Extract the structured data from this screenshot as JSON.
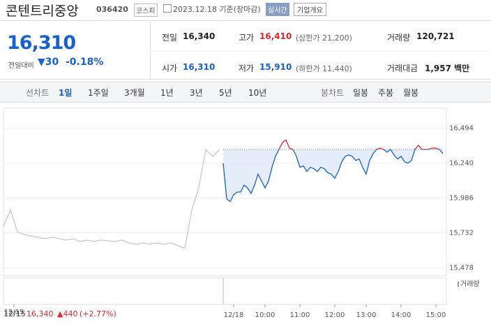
{
  "header": {
    "name": "콘텐트리중앙",
    "code": "036420",
    "market": "코스피",
    "date": "2023.12.18 기준(장마감)",
    "realtime": "실시간",
    "company_info": "기업개요"
  },
  "quote": {
    "price": "16,310",
    "change_label": "전일대비",
    "change": "▼30",
    "change_pct": "-0.18%"
  },
  "stats": [
    {
      "label": "전일",
      "value": "16,340"
    },
    {
      "label": "고가",
      "value": "16,410",
      "note": "(상한가 21,200)",
      "color": "#e0262f"
    },
    {
      "label": "거래량",
      "value": "120,721"
    },
    {
      "label": "시가",
      "value": "16,310",
      "color": "#1761c9"
    },
    {
      "label": "저가",
      "value": "15,910",
      "note": "(하한가 11,440)",
      "color": "#1761c9"
    },
    {
      "label": "거래대금",
      "value": "1,957 백만"
    }
  ],
  "tabs": {
    "line_label": "선차트",
    "line": [
      "1일",
      "1주일",
      "3개월",
      "1년",
      "3년",
      "5년",
      "10년"
    ],
    "candle_label": "봉차트",
    "candle": [
      "일봉",
      "주봉",
      "월봉"
    ]
  },
  "footer": {
    "date": "12/15",
    "price": "16,340",
    "change": "▲440",
    "pct": "(+2.77%)"
  },
  "volume_label": "거래량",
  "chart_data": {
    "type": "line",
    "series": [
      {
        "color": "#c8c8c8",
        "x": [
          0,
          2,
          4,
          6,
          8,
          10,
          12,
          14,
          16,
          18,
          20,
          22,
          24,
          26,
          28,
          30,
          32,
          34,
          36,
          38,
          40,
          42,
          44,
          46,
          48,
          50,
          52,
          54,
          56,
          58,
          60,
          62
        ],
        "values": [
          15780,
          15900,
          15740,
          15720,
          15710,
          15700,
          15690,
          15700,
          15690,
          15680,
          15690,
          15670,
          15680,
          15670,
          15680,
          15675,
          15670,
          15680,
          15660,
          15650,
          15660,
          15650,
          15660,
          15650,
          15660,
          15640,
          15620,
          15900,
          16060,
          16340,
          16290,
          16340
        ]
      },
      {
        "color": "#1761c9",
        "up_color": "#e0262f",
        "fill": "#dde9f8",
        "x": [
          63,
          64,
          65,
          66,
          67,
          68,
          69,
          70,
          71,
          72,
          73,
          74,
          75,
          76,
          77,
          78,
          79,
          80,
          81,
          82,
          83,
          84,
          85,
          86,
          87,
          88,
          89,
          90,
          91,
          92,
          93,
          94,
          95,
          96,
          97,
          98,
          99,
          100,
          101,
          102,
          103,
          104,
          105,
          106,
          107,
          108,
          109,
          110,
          111,
          112,
          113,
          114,
          115,
          116,
          117,
          118,
          119,
          120,
          121,
          122,
          123,
          124,
          125,
          126
        ],
        "values": [
          16240,
          15980,
          15960,
          16010,
          16030,
          16030,
          16080,
          16060,
          16020,
          16080,
          16160,
          16110,
          16060,
          16110,
          16210,
          16290,
          16340,
          16390,
          16410,
          16350,
          16340,
          16290,
          16210,
          16220,
          16180,
          16210,
          16200,
          16180,
          16210,
          16200,
          16170,
          16160,
          16130,
          16180,
          16250,
          16290,
          16300,
          16290,
          16260,
          16270,
          16210,
          16160,
          16260,
          16310,
          16340,
          16350,
          16340,
          16320,
          16340,
          16300,
          16270,
          16290,
          16250,
          16240,
          16260,
          16340,
          16370,
          16340,
          16340,
          16340,
          16350,
          16350,
          16340,
          16310
        ]
      }
    ],
    "reference_line": 16340,
    "xlim": [
      0,
      127
    ],
    "ylim": [
      15420,
      16640
    ],
    "yticks": [
      {
        "value": 16494,
        "label": "16,494"
      },
      {
        "value": 16240,
        "label": "16,240"
      },
      {
        "value": 15986,
        "label": "15,986"
      },
      {
        "value": 15732,
        "label": "15,732"
      },
      {
        "value": 15478,
        "label": "15,478"
      }
    ],
    "xticks": [
      {
        "value": 3,
        "label": "12/15"
      },
      {
        "value": 66,
        "label": "12/18"
      },
      {
        "value": 75,
        "label": "10:00"
      },
      {
        "value": 85,
        "label": "11:00"
      },
      {
        "value": 95,
        "label": "12:00"
      },
      {
        "value": 104,
        "label": "13:00"
      },
      {
        "value": 114,
        "label": "14:00"
      },
      {
        "value": 124,
        "label": "15:00"
      }
    ]
  }
}
